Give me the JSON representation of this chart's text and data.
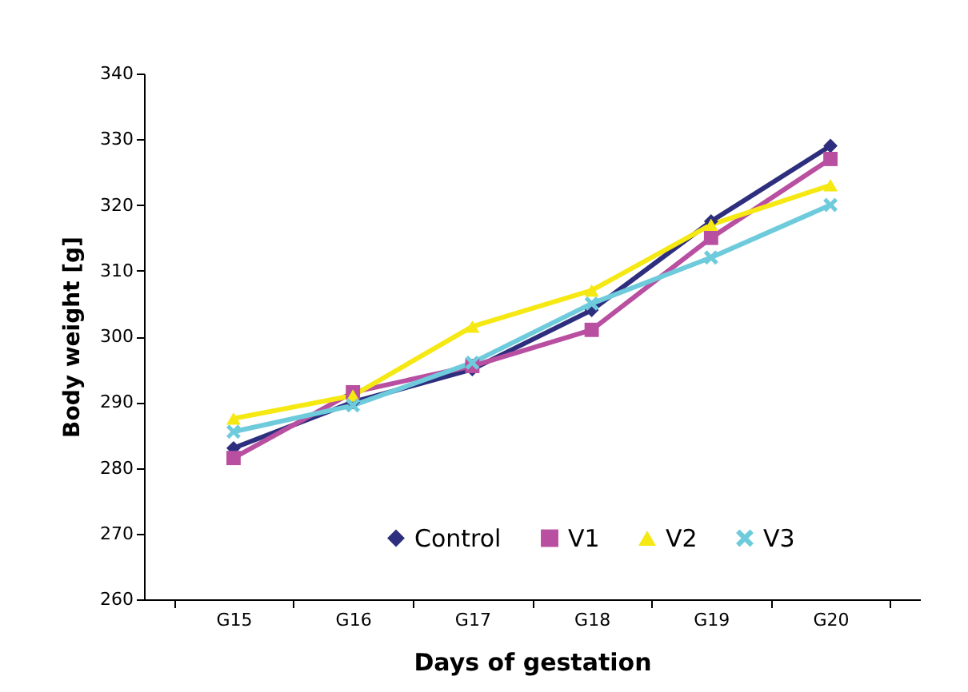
{
  "chart_data": {
    "type": "line",
    "xlabel": "Days of gestation",
    "ylabel": "Body weight [g]",
    "categories": [
      "G15",
      "G16",
      "G17",
      "G18",
      "G19",
      "G20"
    ],
    "series": [
      {
        "name": "Control",
        "color": "#2e2e7e",
        "marker": "diamond",
        "values": [
          283,
          290,
          295,
          304,
          317.5,
          329
        ]
      },
      {
        "name": "V1",
        "color": "#b84fa0",
        "marker": "square",
        "values": [
          281.5,
          291.5,
          295.5,
          301,
          315,
          327
        ]
      },
      {
        "name": "V2",
        "color": "#f5e813",
        "marker": "triangle",
        "values": [
          287.5,
          291,
          301.5,
          307,
          317,
          323
        ]
      },
      {
        "name": "V3",
        "color": "#6ecbdc",
        "marker": "cross",
        "values": [
          285.5,
          289.5,
          296,
          305,
          312,
          320
        ]
      }
    ],
    "ylim": [
      260,
      340
    ],
    "yticks": [
      260,
      270,
      280,
      290,
      300,
      310,
      320,
      330,
      340
    ],
    "grid": false,
    "legend": "bottom",
    "line_style": "solid"
  }
}
